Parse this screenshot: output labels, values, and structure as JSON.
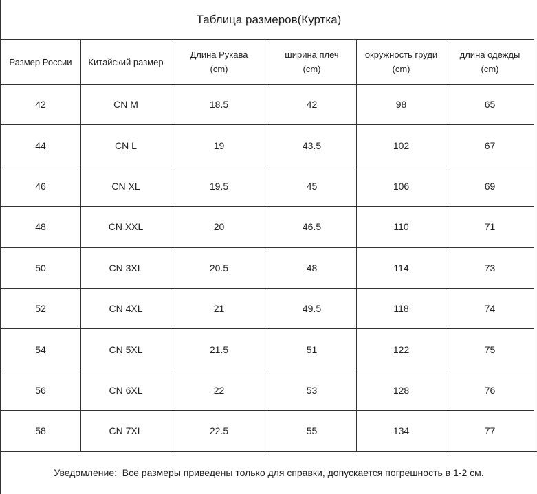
{
  "title": "Таблица размеров(Куртка)",
  "table": {
    "columns": [
      {
        "label": "Размер России",
        "unit": ""
      },
      {
        "label": "Китайский размер",
        "unit": ""
      },
      {
        "label": "Длина Рукава",
        "unit": "(cm)"
      },
      {
        "label": "ширина плеч",
        "unit": "(cm)"
      },
      {
        "label": "окружность груди",
        "unit": "(cm)"
      },
      {
        "label": "длина одежды",
        "unit": "(cm)"
      }
    ],
    "rows": [
      [
        "42",
        "CN M",
        "18.5",
        "42",
        "98",
        "65"
      ],
      [
        "44",
        "CN L",
        "19",
        "43.5",
        "102",
        "67"
      ],
      [
        "46",
        "CN XL",
        "19.5",
        "45",
        "106",
        "69"
      ],
      [
        "48",
        "CN XXL",
        "20",
        "46.5",
        "110",
        "71"
      ],
      [
        "50",
        "CN 3XL",
        "20.5",
        "48",
        "114",
        "73"
      ],
      [
        "52",
        "CN 4XL",
        "21",
        "49.5",
        "118",
        "74"
      ],
      [
        "54",
        "CN 5XL",
        "21.5",
        "51",
        "122",
        "75"
      ],
      [
        "56",
        "CN 6XL",
        "22",
        "53",
        "128",
        "76"
      ],
      [
        "58",
        "CN 7XL",
        "22.5",
        "55",
        "134",
        "77"
      ]
    ]
  },
  "footer": {
    "note": "Уведомление:  Все размеры приведены только для справки, допускается погрешность в 1-2 см."
  },
  "colors": {
    "background": "#ffffff",
    "text": "#1f1f1f",
    "line": "#333333"
  }
}
